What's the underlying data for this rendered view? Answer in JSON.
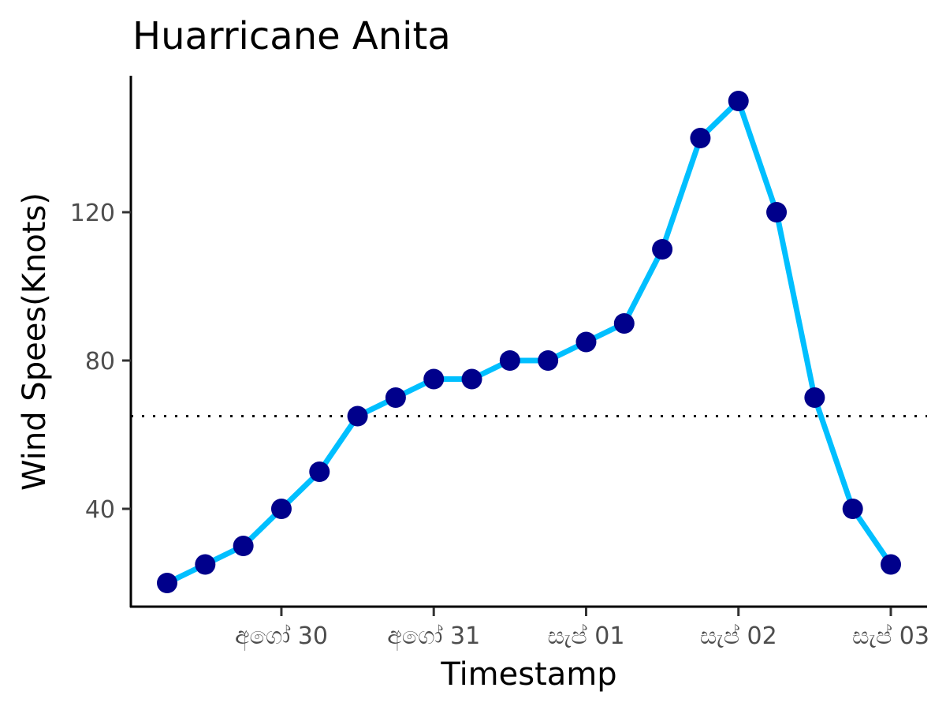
{
  "chart_data": {
    "type": "line",
    "title": "Huarricane Anita",
    "xlabel": "Timestamp",
    "ylabel": "Wind Spees(Knots)",
    "x_unit": "hours",
    "x_ticks": [
      {
        "label": "අගෝ 30",
        "x": 24
      },
      {
        "label": "අගෝ 31",
        "x": 48
      },
      {
        "label": "සැප් 01",
        "x": 72
      },
      {
        "label": "සැප් 02",
        "x": 96
      },
      {
        "label": "සැප් 03",
        "x": 120
      }
    ],
    "y_ticks": [
      40,
      80,
      120
    ],
    "xlim": [
      0,
      120
    ],
    "ylim": [
      15,
      155
    ],
    "series": [
      {
        "x": [
          6,
          12,
          18,
          24,
          30,
          36,
          42,
          48,
          54,
          60,
          66,
          72,
          78,
          84,
          90,
          96,
          102,
          108,
          114,
          120
        ],
        "values": [
          20,
          25,
          30,
          40,
          50,
          65,
          70,
          75,
          75,
          80,
          80,
          85,
          90,
          110,
          140,
          150,
          120,
          70,
          40,
          25
        ],
        "line_color": "#00BFFF",
        "point_color": "#00008B"
      }
    ],
    "reference_line": {
      "y": 65,
      "style": "dotted",
      "color": "#000000"
    },
    "grid": false,
    "legend": "none"
  }
}
